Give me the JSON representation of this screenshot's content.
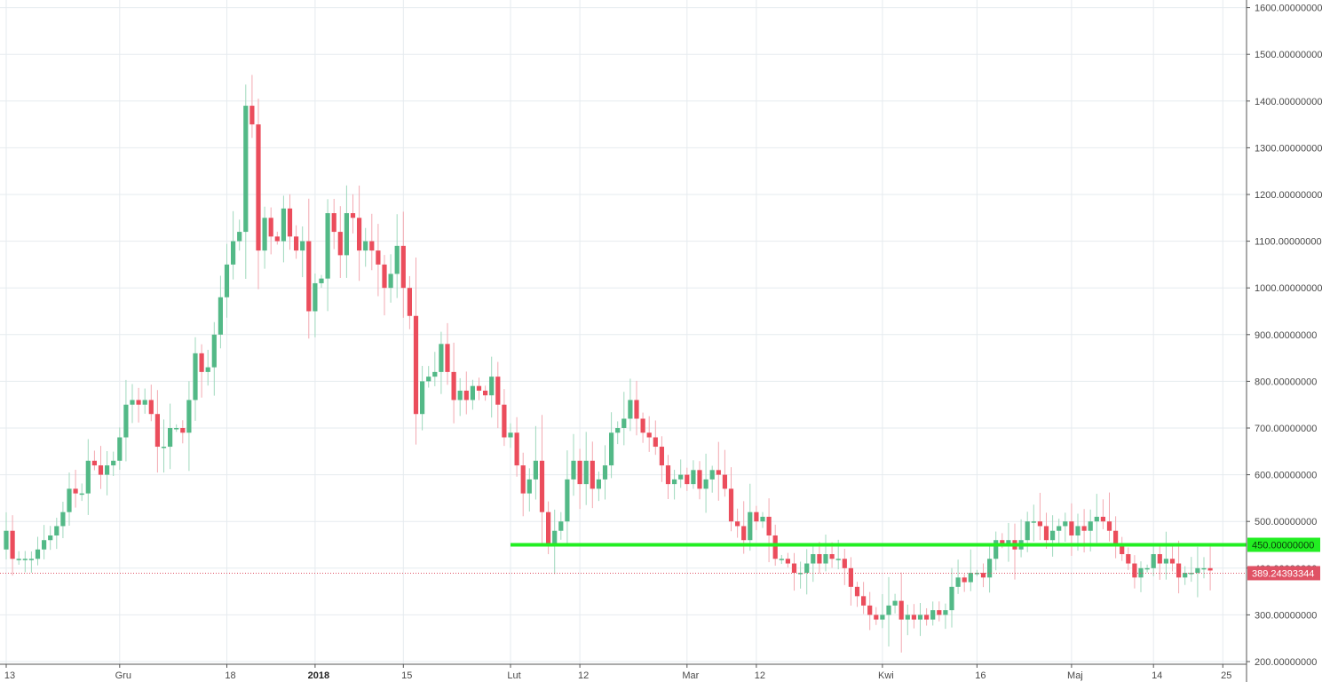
{
  "chart_data": {
    "type": "candlestick",
    "title": "",
    "ylim": [
      190,
      1610
    ],
    "y_ticks": [
      "200.00000000",
      "300.00000000",
      "400.00000000",
      "500.00000000",
      "600.00000000",
      "700.00000000",
      "800.00000000",
      "900.00000000",
      "1000.00000000",
      "1100.00000000",
      "1200.00000000",
      "1300.00000000",
      "1400.00000000",
      "1500.00000000",
      "1600.00000000"
    ],
    "x_ticks": [
      {
        "label": "13",
        "day": 0
      },
      {
        "label": "Gru",
        "day": 18
      },
      {
        "label": "18",
        "day": 35
      },
      {
        "label": "2018",
        "day": 49,
        "bold": true
      },
      {
        "label": "15",
        "day": 63
      },
      {
        "label": "Lut",
        "day": 80
      },
      {
        "label": "12",
        "day": 91
      },
      {
        "label": "Mar",
        "day": 108
      },
      {
        "label": "12",
        "day": 119
      },
      {
        "label": "Kwi",
        "day": 139
      },
      {
        "label": "16",
        "day": 154
      },
      {
        "label": "Maj",
        "day": 169
      },
      {
        "label": "14",
        "day": 182
      },
      {
        "label": "25",
        "day": 193
      }
    ],
    "grid": true,
    "grid_days": [
      0,
      18,
      35,
      49,
      63,
      80,
      91,
      108,
      119,
      139,
      154,
      169,
      182,
      193
    ],
    "horizontal_level": {
      "value": 450,
      "label": "450.00000000",
      "color": "#22ee22",
      "start_day": 80
    },
    "last_price": {
      "value": 389.24393344,
      "label": "389.24393344",
      "color": "#e05265"
    },
    "up_color": "#53b987",
    "down_color": "#eb4d5c",
    "closes": [
      480,
      420,
      420,
      420,
      420,
      440,
      460,
      470,
      490,
      520,
      570,
      560,
      560,
      630,
      620,
      600,
      620,
      630,
      680,
      750,
      760,
      750,
      760,
      730,
      660,
      660,
      700,
      700,
      690,
      760,
      860,
      820,
      830,
      900,
      980,
      1050,
      1100,
      1120,
      1390,
      1350,
      1080,
      1150,
      1110,
      1100,
      1170,
      1110,
      1080,
      1100,
      950,
      1010,
      1020,
      1160,
      1120,
      1070,
      1160,
      1150,
      1080,
      1100,
      1080,
      1050,
      1000,
      1030,
      1090,
      1000,
      940,
      730,
      800,
      810,
      820,
      880,
      820,
      760,
      780,
      760,
      790,
      780,
      770,
      810,
      750,
      680,
      690,
      620,
      560,
      590,
      630,
      520,
      450,
      480,
      500,
      590,
      630,
      580,
      630,
      570,
      590,
      620,
      690,
      700,
      720,
      760,
      720,
      690,
      680,
      660,
      620,
      580,
      590,
      600,
      580,
      610,
      570,
      590,
      610,
      600,
      570,
      500,
      490,
      460,
      520,
      500,
      510,
      470,
      420,
      420,
      410,
      390,
      390,
      410,
      430,
      410,
      430,
      420,
      420,
      400,
      360,
      340,
      320,
      300,
      290,
      300,
      320,
      330,
      290,
      300,
      290,
      300,
      290,
      310,
      300,
      310,
      360,
      380,
      370,
      390,
      390,
      380,
      420,
      460,
      450,
      460,
      440,
      460,
      500,
      500,
      490,
      460,
      480,
      490,
      500,
      470,
      490,
      480,
      500,
      510,
      500,
      480,
      450,
      430,
      410,
      380,
      400,
      400,
      430,
      410,
      420,
      410,
      380,
      390,
      390,
      400,
      400,
      395
    ]
  }
}
